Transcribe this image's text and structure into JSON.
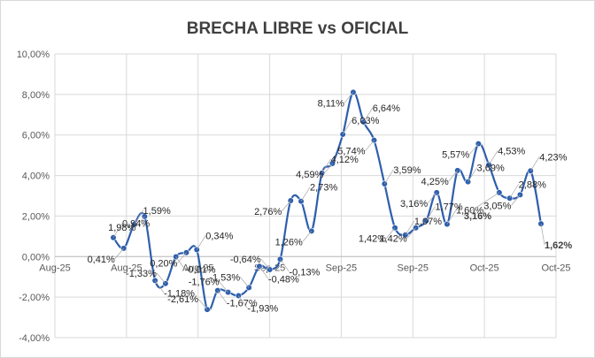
{
  "chart_data": {
    "type": "line",
    "title": "BRECHA LIBRE vs OFICIAL",
    "xlabel": "",
    "ylabel": "",
    "ylim": [
      -4,
      10
    ],
    "y_ticks": [
      "10,00%",
      "8,00%",
      "6,00%",
      "4,00%",
      "2,00%",
      "0,00%",
      "-2,00%",
      "-4,00%"
    ],
    "x_tick_labels": [
      "Aug-25",
      "Aug-25",
      "Aug-25",
      "Sep-25",
      "Sep-25",
      "Sep-25",
      "Oct-25",
      "Oct-25"
    ],
    "grid": true,
    "legend": "none",
    "line_color": "#2e5fad",
    "series": [
      {
        "values": [
          0.94,
          0.41,
          1.59,
          1.98,
          -1.18,
          -1.33,
          -0.01,
          0.2,
          0.34,
          -2.61,
          -1.67,
          -1.76,
          -1.93,
          -1.53,
          -0.48,
          -0.64,
          -0.13,
          2.76,
          2.73,
          1.26,
          4.12,
          4.59,
          6.03,
          8.11,
          6.64,
          5.74,
          3.59,
          1.42,
          1.07,
          1.42,
          1.77,
          3.16,
          1.6,
          4.25,
          3.69,
          5.57,
          4.53,
          3.16,
          2.88,
          3.05,
          4.23,
          1.62
        ],
        "labels": [
          "0,94%",
          "0,41%",
          "1,59%",
          "1,98%",
          "-1,18%",
          "-1,33%",
          "-0,01%",
          "0,20%",
          "0,34%",
          "-2,61%",
          "-1,67%",
          "-1,76%",
          "-1,93%",
          "-1,53%",
          "-0,48%",
          "-0,64%",
          "-0,13%",
          "2,76%",
          "2,73%",
          "1,26%",
          "4,12%",
          "4,59%",
          "6,03%",
          "8,11%",
          "6,64%",
          "5,74%",
          "3,59%",
          "1,42%",
          "1,07%",
          "1,42%",
          "1,77%",
          "3,16%",
          "1,60%",
          "4,25%",
          "3,69%",
          "5,57%",
          "4,53%",
          "3,16%",
          "2,88%",
          "3,05%",
          "4,23%",
          "1,62%"
        ]
      }
    ]
  }
}
